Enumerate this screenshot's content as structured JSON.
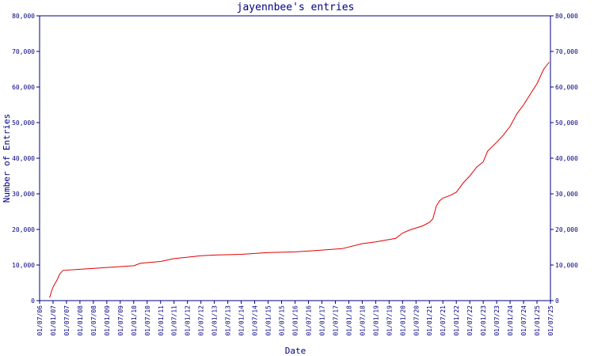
{
  "colors": {
    "axis": "#000080",
    "text": "#000080",
    "series": "#e00000",
    "background": "#ffffff"
  },
  "chart_data": {
    "type": "line",
    "title": "jayennbee's entries",
    "xlabel": "Date",
    "ylabel": "Number of Entries",
    "ylim": [
      0,
      80000
    ],
    "y_ticks": [
      0,
      10000,
      20000,
      30000,
      40000,
      50000,
      60000,
      70000,
      80000
    ],
    "y_tick_labels": [
      "0",
      "10,000",
      "20,000",
      "30,000",
      "40,000",
      "50,000",
      "60,000",
      "70,000",
      "80,000"
    ],
    "x_tick_labels": [
      "01/07/06",
      "01/01/07",
      "01/07/07",
      "01/01/08",
      "01/07/08",
      "01/01/09",
      "01/07/09",
      "01/01/10",
      "01/07/10",
      "01/01/11",
      "01/07/11",
      "01/01/12",
      "01/07/12",
      "01/01/13",
      "01/07/13",
      "01/01/14",
      "01/07/14",
      "01/01/15",
      "01/07/15",
      "01/01/16",
      "01/07/16",
      "01/01/17",
      "01/07/17",
      "01/01/18",
      "01/07/18",
      "01/01/19",
      "01/07/19",
      "01/01/20",
      "01/07/20",
      "01/01/21",
      "01/07/21",
      "01/01/22",
      "01/07/22",
      "01/01/23",
      "01/07/23",
      "01/01/24",
      "01/07/24",
      "01/01/25",
      "01/07/25"
    ],
    "grid": false,
    "legend": "none",
    "series": [
      {
        "x": [
          "2006-11-15",
          "2006-12-15",
          "2007-01-10",
          "2007-02-15",
          "2007-04-01",
          "2007-05-15",
          "2008-01-01",
          "2009-01-01",
          "2010-01-01",
          "2010-04-01",
          "2011-01-01",
          "2011-07-01",
          "2012-01-01",
          "2012-07-01",
          "2013-01-01",
          "2014-01-01",
          "2015-01-01",
          "2016-01-01",
          "2017-01-01",
          "2017-10-01",
          "2018-07-01",
          "2019-01-01",
          "2019-10-01",
          "2020-01-01",
          "2020-04-01",
          "2020-10-01",
          "2021-01-01",
          "2021-02-15",
          "2021-04-01",
          "2021-05-15",
          "2021-07-01",
          "2021-10-01",
          "2022-01-01",
          "2022-04-01",
          "2022-07-01",
          "2022-10-01",
          "2023-01-01",
          "2023-03-01",
          "2023-07-01",
          "2023-10-01",
          "2024-01-01",
          "2024-04-01",
          "2024-07-01",
          "2024-10-01",
          "2025-01-01",
          "2025-04-01",
          "2025-06-15"
        ],
        "values": [
          800,
          3000,
          4200,
          5500,
          7500,
          8500,
          8800,
          9300,
          9800,
          10500,
          11000,
          11800,
          12200,
          12600,
          12800,
          13000,
          13500,
          13700,
          14200,
          14600,
          16000,
          16500,
          17500,
          19000,
          19800,
          21000,
          22000,
          23000,
          26500,
          28000,
          28800,
          29500,
          30500,
          33000,
          35000,
          37500,
          39000,
          42000,
          44500,
          46500,
          49000,
          52500,
          55000,
          58000,
          61000,
          65000,
          67000
        ]
      }
    ]
  }
}
